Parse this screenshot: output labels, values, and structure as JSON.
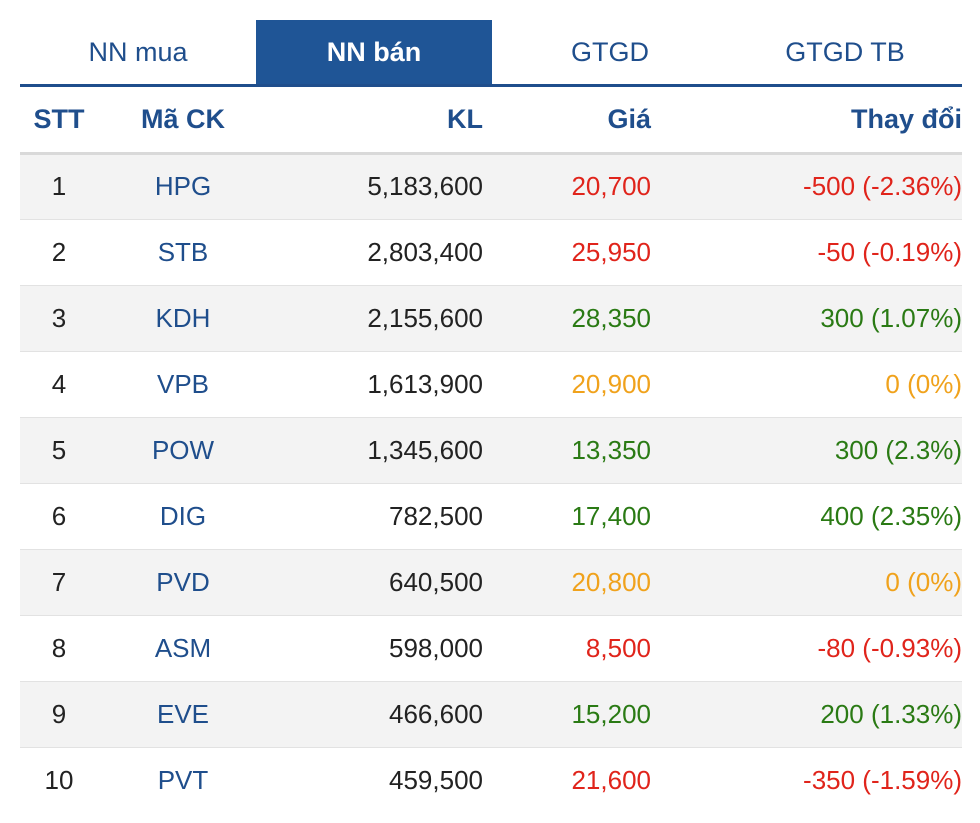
{
  "tabs": [
    {
      "label": "NN mua",
      "active": false
    },
    {
      "label": "NN bán",
      "active": true
    },
    {
      "label": "GTGD",
      "active": false
    },
    {
      "label": "GTGD TB",
      "active": false
    }
  ],
  "headers": {
    "stt": "STT",
    "code": "Mã CK",
    "kl": "KL",
    "price": "Giá",
    "change": "Thay đổi"
  },
  "colors": {
    "accent": "#1f5596",
    "down": "#e0241b",
    "up": "#2a7a14",
    "unchanged": "#f0a21c"
  },
  "rows": [
    {
      "stt": "1",
      "code": "HPG",
      "kl": "5,183,600",
      "price": "20,700",
      "change": "-500 (-2.36%)",
      "trend": "down"
    },
    {
      "stt": "2",
      "code": "STB",
      "kl": "2,803,400",
      "price": "25,950",
      "change": "-50 (-0.19%)",
      "trend": "down"
    },
    {
      "stt": "3",
      "code": "KDH",
      "kl": "2,155,600",
      "price": "28,350",
      "change": "300 (1.07%)",
      "trend": "up"
    },
    {
      "stt": "4",
      "code": "VPB",
      "kl": "1,613,900",
      "price": "20,900",
      "change": "0 (0%)",
      "trend": "unchanged"
    },
    {
      "stt": "5",
      "code": "POW",
      "kl": "1,345,600",
      "price": "13,350",
      "change": "300 (2.3%)",
      "trend": "up"
    },
    {
      "stt": "6",
      "code": "DIG",
      "kl": "782,500",
      "price": "17,400",
      "change": "400 (2.35%)",
      "trend": "up"
    },
    {
      "stt": "7",
      "code": "PVD",
      "kl": "640,500",
      "price": "20,800",
      "change": "0 (0%)",
      "trend": "unchanged"
    },
    {
      "stt": "8",
      "code": "ASM",
      "kl": "598,000",
      "price": "8,500",
      "change": "-80 (-0.93%)",
      "trend": "down"
    },
    {
      "stt": "9",
      "code": "EVE",
      "kl": "466,600",
      "price": "15,200",
      "change": "200 (1.33%)",
      "trend": "up"
    },
    {
      "stt": "10",
      "code": "PVT",
      "kl": "459,500",
      "price": "21,600",
      "change": "-350 (-1.59%)",
      "trend": "down"
    }
  ]
}
